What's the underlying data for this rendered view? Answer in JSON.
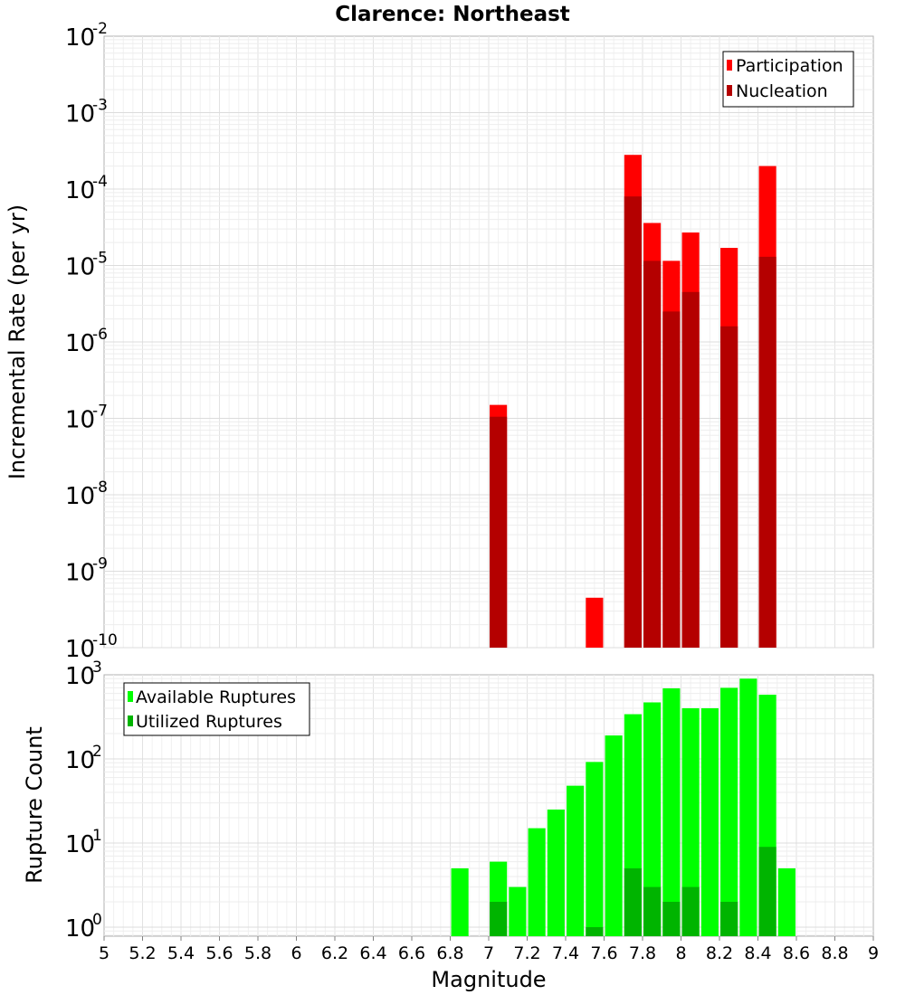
{
  "title": "Clarence: Northeast",
  "xlabel": "Magnitude",
  "x_ticks": [
    "5",
    "5.2",
    "5.4",
    "5.6",
    "5.8",
    "6",
    "6.2",
    "6.4",
    "6.6",
    "6.8",
    "7",
    "7.2",
    "7.4",
    "7.6",
    "7.8",
    "8",
    "8.2",
    "8.4",
    "8.6",
    "8.8",
    "9"
  ],
  "chart_data": [
    {
      "type": "bar",
      "ylabel": "Incremental Rate (per yr)",
      "y_scale": "log",
      "xlim": [
        5,
        9
      ],
      "ylim": [
        1e-10,
        0.01
      ],
      "y_ticks": [
        {
          "base": "10",
          "exp": "-2"
        },
        {
          "base": "10",
          "exp": "-3"
        },
        {
          "base": "10",
          "exp": "-4"
        },
        {
          "base": "10",
          "exp": "-5"
        },
        {
          "base": "10",
          "exp": "-6"
        },
        {
          "base": "10",
          "exp": "-7"
        },
        {
          "base": "10",
          "exp": "-8"
        },
        {
          "base": "10",
          "exp": "-9"
        },
        {
          "base": "10",
          "exp": "-10"
        }
      ],
      "grid": true,
      "legend_position": "top-right",
      "bar_width": 0.09,
      "series": [
        {
          "name": "Participation",
          "color": "#ff0000",
          "points": [
            [
              7.05,
              1.5e-07
            ],
            [
              7.55,
              4.5e-10
            ],
            [
              7.75,
              0.00028
            ],
            [
              7.85,
              3.6e-05
            ],
            [
              7.95,
              1.15e-05
            ],
            [
              8.05,
              2.7e-05
            ],
            [
              8.25,
              1.7e-05
            ],
            [
              8.45,
              0.0002
            ]
          ]
        },
        {
          "name": "Nucleation",
          "color": "#b40000",
          "points": [
            [
              7.05,
              1.05e-07
            ],
            [
              7.75,
              8e-05
            ],
            [
              7.85,
              1.15e-05
            ],
            [
              7.95,
              2.5e-06
            ],
            [
              8.05,
              4.5e-06
            ],
            [
              8.25,
              1.6e-06
            ],
            [
              8.45,
              1.3e-05
            ]
          ]
        }
      ]
    },
    {
      "type": "bar",
      "ylabel": "Rupture Count",
      "y_scale": "log",
      "xlim": [
        5,
        9
      ],
      "ylim": [
        0.78,
        1000
      ],
      "y_ticks": [
        {
          "base": "10",
          "exp": "3"
        },
        {
          "base": "10",
          "exp": "2"
        },
        {
          "base": "10",
          "exp": "1"
        },
        {
          "base": "10",
          "exp": "0"
        }
      ],
      "grid": true,
      "legend_position": "top-left",
      "bar_width": 0.09,
      "series": [
        {
          "name": "Available Ruptures",
          "color": "#00ff00",
          "points": [
            [
              6.85,
              5
            ],
            [
              7.05,
              6
            ],
            [
              7.15,
              3
            ],
            [
              7.25,
              15
            ],
            [
              7.35,
              25
            ],
            [
              7.45,
              48
            ],
            [
              7.55,
              92
            ],
            [
              7.65,
              190
            ],
            [
              7.75,
              340
            ],
            [
              7.85,
              470
            ],
            [
              7.95,
              690
            ],
            [
              8.05,
              400
            ],
            [
              8.15,
              400
            ],
            [
              8.25,
              700
            ],
            [
              8.35,
              900
            ],
            [
              8.45,
              580
            ],
            [
              8.55,
              5
            ]
          ]
        },
        {
          "name": "Utilized Ruptures",
          "color": "#00b400",
          "points": [
            [
              7.05,
              2
            ],
            [
              7.55,
              1
            ],
            [
              7.75,
              5
            ],
            [
              7.85,
              3
            ],
            [
              7.95,
              2
            ],
            [
              8.05,
              3
            ],
            [
              8.25,
              2
            ],
            [
              8.45,
              9
            ]
          ]
        }
      ]
    }
  ]
}
